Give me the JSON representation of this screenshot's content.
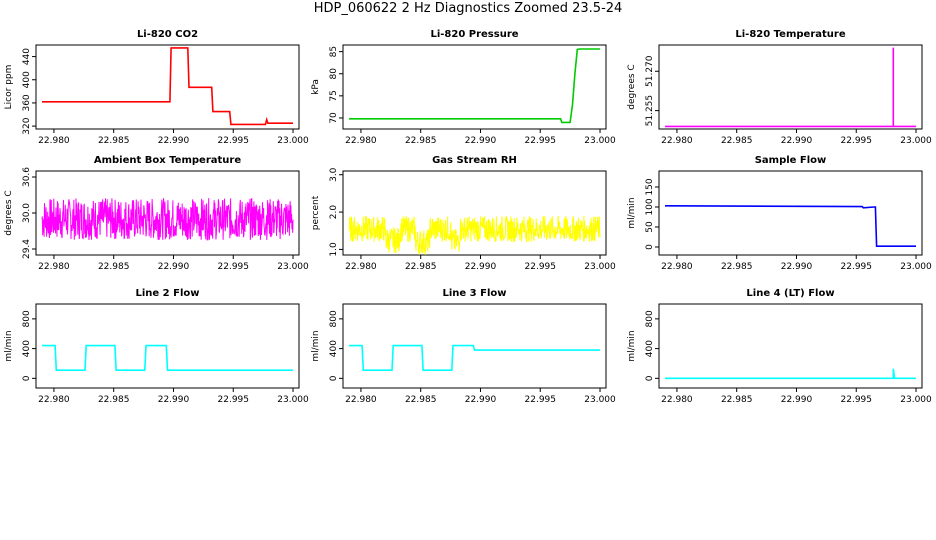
{
  "title": "HDP_060622  2 Hz Diagnostics Zoomed 23.5-24",
  "xaxis": {
    "range": [
      22.9785,
      23.0005
    ],
    "ticks": [
      "22.980",
      "22.985",
      "22.990",
      "22.995",
      "23.000"
    ]
  },
  "chart_data": [
    {
      "type": "line",
      "title": "Li-820 CO2",
      "ylabel": "Licor ppm",
      "color": "#ff0000",
      "ylim": [
        315,
        460
      ],
      "yticks": [
        "320",
        "360",
        "400",
        "440"
      ],
      "series": [
        {
          "x": [
            22.979,
            22.9897,
            22.9898,
            22.9912,
            22.9913,
            22.9932,
            22.9933,
            22.9947,
            22.9948,
            22.9977,
            22.9978,
            22.9979,
            23.0
          ],
          "values": [
            362,
            362,
            455,
            455,
            387,
            387,
            345,
            345,
            323,
            323,
            331,
            325,
            325
          ]
        }
      ]
    },
    {
      "type": "line",
      "title": "Li-820 Pressure",
      "ylabel": "kPa",
      "color": "#00cc00",
      "ylim": [
        67.5,
        86.5
      ],
      "yticks": [
        "70",
        "75",
        "80",
        "85"
      ],
      "series": [
        {
          "x": [
            22.979,
            22.9967,
            22.9968,
            22.9975,
            22.9977,
            22.9979,
            22.9981,
            22.9983,
            23.0
          ],
          "values": [
            69.8,
            69.8,
            69.0,
            69.0,
            73,
            80,
            85.5,
            85.6,
            85.6
          ]
        }
      ]
    },
    {
      "type": "line",
      "title": "Li-820 Temperature",
      "ylabel": "degrees C",
      "color": "#ff00ff",
      "ylim": [
        51.248,
        51.28
      ],
      "yticks": [
        "51.255",
        "51.270"
      ],
      "series": [
        {
          "x": [
            22.979,
            22.9981,
            22.9981,
            22.9981,
            22.9982,
            23.0
          ],
          "values": [
            51.249,
            51.249,
            51.279,
            51.249,
            51.249,
            51.249
          ]
        }
      ]
    },
    {
      "type": "line",
      "title": "Ambient Box Temperature",
      "ylabel": "degrees C",
      "color": "#ff00ff",
      "ylim": [
        29.3,
        30.7
      ],
      "yticks": [
        "29.4",
        "30.0",
        "30.6"
      ],
      "series": [
        {
          "x": [
            22.979,
            23.0
          ],
          "values": [
            29.9,
            29.9
          ],
          "noise": 0.35
        }
      ]
    },
    {
      "type": "line",
      "title": "Gas Stream RH",
      "ylabel": "percent",
      "color": "#ffff00",
      "ylim": [
        0.85,
        3.1
      ],
      "yticks": [
        "1.0",
        "2.0",
        "3.0"
      ],
      "series": [
        {
          "x": [
            22.979,
            22.982,
            22.9821,
            22.9832,
            22.9833,
            22.9845,
            22.9846,
            22.9857,
            22.9858,
            22.9875,
            22.9876,
            22.9882,
            22.9883,
            23.0
          ],
          "values": [
            1.55,
            1.55,
            1.25,
            1.25,
            1.55,
            1.55,
            1.2,
            1.2,
            1.55,
            1.55,
            1.2,
            1.2,
            1.55,
            1.55
          ],
          "noise": 0.35
        }
      ]
    },
    {
      "type": "line",
      "title": "Sample Flow",
      "ylabel": "ml/min",
      "color": "#0000ff",
      "ylim": [
        -20,
        190
      ],
      "yticks": [
        "0",
        "50",
        "100",
        "150"
      ],
      "series": [
        {
          "x": [
            22.979,
            22.9955,
            22.9956,
            22.9965,
            22.9966,
            22.9967,
            23.0
          ],
          "values": [
            103,
            101,
            98,
            100,
            100,
            2,
            2
          ]
        }
      ]
    },
    {
      "type": "line",
      "title": "Line 2 Flow",
      "ylabel": "ml/min",
      "color": "#00ffff",
      "ylim": [
        -130,
        1000
      ],
      "yticks": [
        "0",
        "400",
        "800"
      ],
      "series": [
        {
          "x": [
            22.979,
            22.9801,
            22.9802,
            22.9826,
            22.9827,
            22.9851,
            22.9852,
            22.9876,
            22.9877,
            22.9894,
            22.9895,
            23.0
          ],
          "values": [
            440,
            440,
            110,
            110,
            440,
            440,
            110,
            110,
            440,
            440,
            110,
            110
          ]
        }
      ]
    },
    {
      "type": "line",
      "title": "Line 3 Flow",
      "ylabel": "ml/min",
      "color": "#00ffff",
      "ylim": [
        -130,
        1000
      ],
      "yticks": [
        "0",
        "400",
        "800"
      ],
      "series": [
        {
          "x": [
            22.979,
            22.9801,
            22.9802,
            22.9826,
            22.9827,
            22.9851,
            22.9852,
            22.9876,
            22.9877,
            22.9894,
            22.9895,
            23.0
          ],
          "values": [
            440,
            440,
            110,
            110,
            440,
            440,
            110,
            110,
            440,
            440,
            380,
            380
          ]
        }
      ]
    },
    {
      "type": "line",
      "title": "Line 4 (LT) Flow",
      "ylabel": "ml/min",
      "color": "#00ffff",
      "ylim": [
        -130,
        1000
      ],
      "yticks": [
        "0",
        "400",
        "800"
      ],
      "series": [
        {
          "x": [
            22.979,
            22.9981,
            22.9981,
            22.9982,
            22.9982,
            23.0
          ],
          "values": [
            0,
            0,
            130,
            0,
            0,
            0
          ]
        }
      ]
    }
  ]
}
